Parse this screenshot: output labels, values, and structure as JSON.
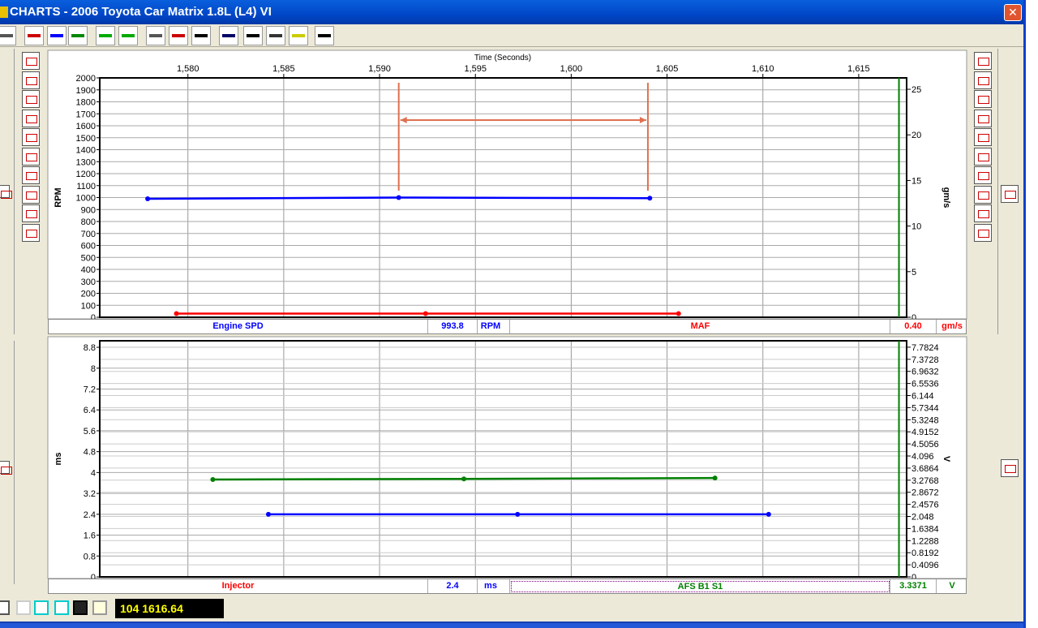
{
  "window": {
    "title": "CHARTS - 2006 Toyota Car Matrix 1.8L (L4) VI",
    "close": "✕"
  },
  "toolbar": {
    "buttons": [
      "zoom-icon",
      "overlay-charts-icon",
      "stacked-charts-icon",
      "multi-charts-icon",
      "add-chart-icon",
      "remove-chart-icon",
      "chart-settings-icon",
      "chart-line-icon",
      "chart-text-icon",
      "filmstrip-icon",
      "timer-icon",
      "tools-icon",
      "key-icon",
      "print-icon"
    ]
  },
  "top_chart": {
    "x_title": "Time (Seconds)",
    "x_ticks": [
      "1,580",
      "1,585",
      "1,590",
      "1,595",
      "1,600",
      "1,605",
      "1,610",
      "1,615"
    ],
    "left_label": "RPM",
    "right_label": "gm/s",
    "legend": {
      "left_name": "Engine SPD",
      "left_value": "993.8",
      "left_unit": "RPM",
      "right_name": "MAF",
      "right_value": "0.40",
      "right_unit": "gm/s"
    }
  },
  "bottom_chart": {
    "left_label": "ms",
    "right_label": "V",
    "legend": {
      "left_name": "Injector",
      "left_value": "2.4",
      "left_unit": "ms",
      "right_name": "AFS B1 S1",
      "right_value": "3.3371",
      "right_unit": "V"
    }
  },
  "status": {
    "counter": "104  1616.64"
  },
  "chart_data": [
    {
      "type": "line",
      "xlabel": "Time (Seconds)",
      "xlim": [
        1575.4,
        1617.5
      ],
      "ylabel": "RPM",
      "ylim": [
        0,
        2000
      ],
      "yticks_step": 100,
      "y2label": "gm/s",
      "y2lim": [
        0,
        26.25
      ],
      "y2ticks": [
        0,
        5,
        10,
        15,
        20,
        25
      ],
      "grid": true,
      "series": [
        {
          "name": "Engine SPD",
          "axis": "left",
          "color": "#0000ff",
          "x": [
            1577.9,
            1591.0,
            1604.1
          ],
          "y": [
            990,
            1000,
            995
          ]
        },
        {
          "name": "MAF",
          "axis": "right",
          "color": "#ff0000",
          "x": [
            1579.4,
            1592.4,
            1605.6
          ],
          "y": [
            0.4,
            0.4,
            0.4
          ]
        }
      ],
      "cursor": {
        "color": "#e07050",
        "x": [
          1591.0,
          1604.0
        ]
      },
      "marker_line": {
        "color": "#008000",
        "x": 1617.1
      }
    },
    {
      "type": "line",
      "xlim": [
        1575.4,
        1617.5
      ],
      "ylabel": "ms",
      "ylim": [
        0,
        9.05
      ],
      "yticks": [
        "0",
        "0.8",
        "1.6",
        "2.4",
        "3.2",
        "4",
        "4.8",
        "5.6",
        "6.4",
        "7.2",
        "8",
        "8.8"
      ],
      "y2label": "V",
      "y2lim": [
        0,
        8.0
      ],
      "y2ticks": [
        "0",
        "0.4096",
        "0.8192",
        "1.2288",
        "1.6384",
        "2.048",
        "2.4576",
        "2.8672",
        "3.2768",
        "3.6864",
        "4.096",
        "4.5056",
        "4.9152",
        "5.3248",
        "5.7344",
        "6.144",
        "6.5536",
        "6.9632",
        "7.3728",
        "7.7824"
      ],
      "grid": true,
      "series": [
        {
          "name": "AFS B1 S1",
          "axis": "right",
          "color": "#008000",
          "x": [
            1581.3,
            1594.4,
            1607.5
          ],
          "y": [
            3.3,
            3.32,
            3.35
          ]
        },
        {
          "name": "Injector",
          "axis": "left",
          "color": "#0000ff",
          "x": [
            1584.2,
            1597.2,
            1610.3
          ],
          "y": [
            2.4,
            2.4,
            2.4
          ]
        }
      ],
      "marker_line": {
        "color": "#008000",
        "x": 1617.1
      }
    }
  ]
}
